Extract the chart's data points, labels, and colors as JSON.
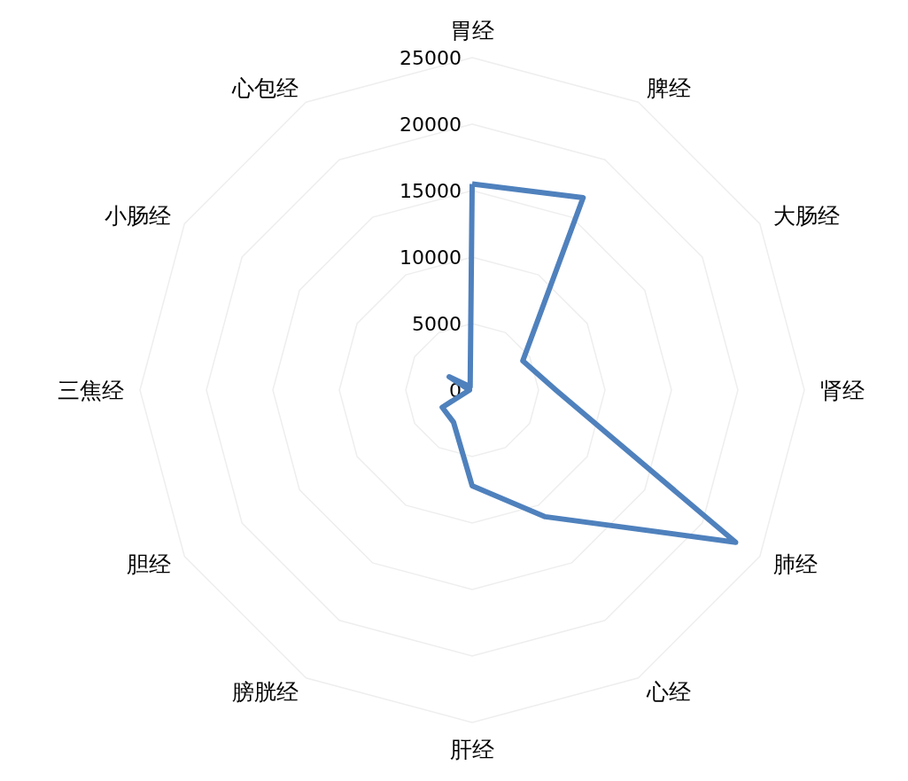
{
  "chart_data": {
    "type": "radar",
    "categories": [
      "胃经",
      "脾经",
      "大肠经",
      "肾经",
      "肺经",
      "心经",
      "肝经",
      "膀胱经",
      "胆经",
      "三焦经",
      "小肠经",
      "心包经"
    ],
    "series": [
      {
        "color": "#4f81bd",
        "values": [
          15500,
          16700,
          4400,
          6300,
          22900,
          11000,
          7200,
          2800,
          2600,
          200,
          2000,
          300
        ]
      }
    ],
    "ylim": [
      0,
      25000
    ],
    "yticks": [
      0,
      5000,
      10000,
      15000,
      20000,
      25000
    ],
    "grid": true,
    "marker": "none",
    "line_style": "solid"
  }
}
